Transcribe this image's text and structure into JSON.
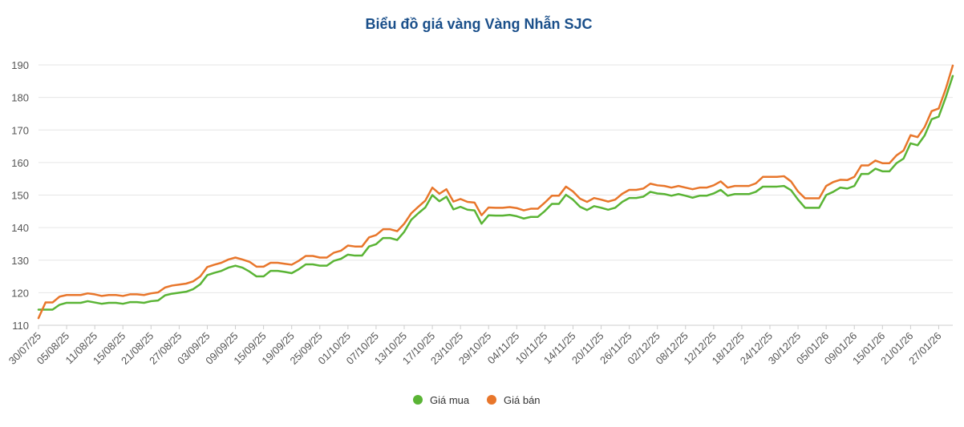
{
  "chart_data": {
    "type": "line",
    "title": "Biểu đồ giá vàng Vàng Nhẫn SJC",
    "ylim": [
      110,
      190
    ],
    "yticks": [
      "110",
      "120",
      "130",
      "140",
      "150",
      "160",
      "170",
      "180",
      "190"
    ],
    "grid": true,
    "legend_position": "bottom-center",
    "x_tick_labels": [
      "30/07/25",
      "05/08/25",
      "11/08/25",
      "15/08/25",
      "21/08/25",
      "27/08/25",
      "03/09/25",
      "09/09/25",
      "15/09/25",
      "19/09/25",
      "25/09/25",
      "01/10/25",
      "07/10/25",
      "13/10/25",
      "17/10/25",
      "23/10/25",
      "29/10/25",
      "04/11/25",
      "10/11/25",
      "14/11/25",
      "20/11/25",
      "26/11/25",
      "02/12/25",
      "08/12/25",
      "12/12/25",
      "18/12/25",
      "24/12/25",
      "30/12/25",
      "05/01/26",
      "09/01/26",
      "15/01/26",
      "21/01/26",
      "27/01/26"
    ],
    "series": [
      {
        "name": "Giá mua",
        "color": "#5ab435",
        "values": [
          114.8,
          114.8,
          114.8,
          116.3,
          116.9,
          116.9,
          116.9,
          117.4,
          117.0,
          116.6,
          116.9,
          116.9,
          116.6,
          117.1,
          117.1,
          116.9,
          117.4,
          117.6,
          119.2,
          119.7,
          120.0,
          120.3,
          121.1,
          122.6,
          125.4,
          126.1,
          126.7,
          127.7,
          128.3,
          127.7,
          126.5,
          125.0,
          125.0,
          126.7,
          126.7,
          126.4,
          126.0,
          127.2,
          128.7,
          128.7,
          128.3,
          128.3,
          129.8,
          130.4,
          131.7,
          131.4,
          131.4,
          134.2,
          134.9,
          136.8,
          136.8,
          136.2,
          138.7,
          142.4,
          144.4,
          146.2,
          150.0,
          148.1,
          149.5,
          145.6,
          146.4,
          145.5,
          145.3,
          141.2,
          143.8,
          143.7,
          143.7,
          143.9,
          143.5,
          142.8,
          143.3,
          143.3,
          145.1,
          147.3,
          147.3,
          150.1,
          148.6,
          146.4,
          145.4,
          146.6,
          146.1,
          145.5,
          146.1,
          147.9,
          149.1,
          149.1,
          149.5,
          151.0,
          150.5,
          150.3,
          149.8,
          150.3,
          149.8,
          149.2,
          149.8,
          149.8,
          150.5,
          151.6,
          149.8,
          150.3,
          150.3,
          150.3,
          151.0,
          152.6,
          152.6,
          152.6,
          152.8,
          151.5,
          148.6,
          146.1,
          146.1,
          146.1,
          150.0,
          151.0,
          152.3,
          152.0,
          152.8,
          156.5,
          156.5,
          158.1,
          157.3,
          157.3,
          159.8,
          161.2,
          165.9,
          165.3,
          168.3,
          173.3,
          174.1,
          180.0,
          186.6
        ]
      },
      {
        "name": "Giá bán",
        "color": "#e8762b",
        "values": [
          112.2,
          117.0,
          117.0,
          118.8,
          119.3,
          119.3,
          119.3,
          119.8,
          119.5,
          119.0,
          119.3,
          119.3,
          119.0,
          119.5,
          119.5,
          119.3,
          119.8,
          120.1,
          121.6,
          122.2,
          122.5,
          122.8,
          123.5,
          125.0,
          127.9,
          128.6,
          129.2,
          130.2,
          130.8,
          130.2,
          129.5,
          128.0,
          128.0,
          129.2,
          129.2,
          128.9,
          128.6,
          129.8,
          131.3,
          131.3,
          130.8,
          130.8,
          132.3,
          132.9,
          134.5,
          134.2,
          134.2,
          137.0,
          137.7,
          139.5,
          139.5,
          138.9,
          141.2,
          144.4,
          146.4,
          148.3,
          152.3,
          150.4,
          151.8,
          148.0,
          148.8,
          147.9,
          147.7,
          143.8,
          146.2,
          146.1,
          146.1,
          146.3,
          146.0,
          145.3,
          145.8,
          145.8,
          147.7,
          149.8,
          149.8,
          152.6,
          151.1,
          148.9,
          147.9,
          149.1,
          148.6,
          148.0,
          148.6,
          150.4,
          151.6,
          151.6,
          152.0,
          153.5,
          153.0,
          152.8,
          152.3,
          152.8,
          152.3,
          151.8,
          152.3,
          152.3,
          153.0,
          154.2,
          152.3,
          152.8,
          152.8,
          152.8,
          153.6,
          155.6,
          155.6,
          155.6,
          155.8,
          154.2,
          151.1,
          149.0,
          149.0,
          149.0,
          152.8,
          154.0,
          154.7,
          154.6,
          155.6,
          159.1,
          159.1,
          160.6,
          159.8,
          159.8,
          162.2,
          163.7,
          168.4,
          167.8,
          170.9,
          175.8,
          176.6,
          182.6,
          189.8
        ]
      }
    ]
  }
}
